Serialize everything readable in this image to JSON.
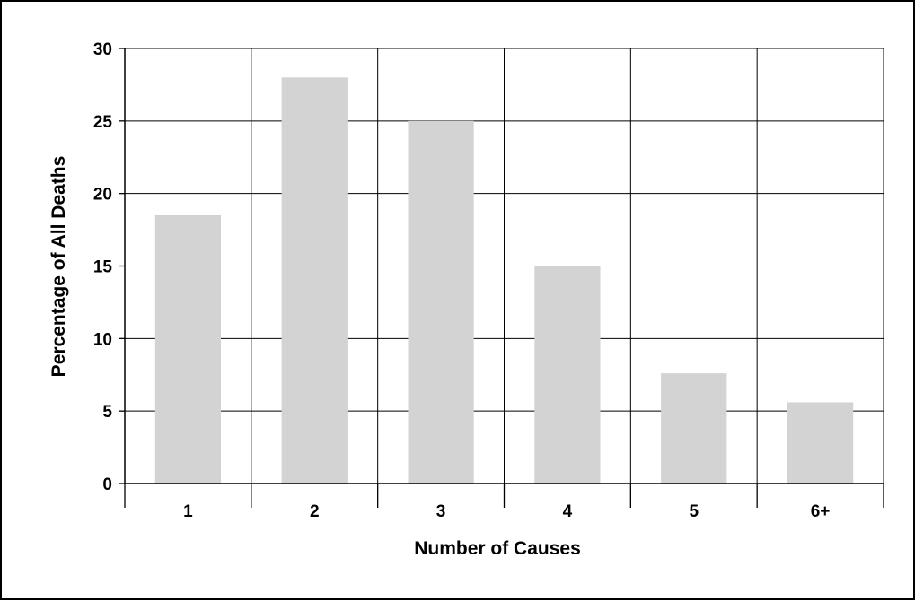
{
  "chart_data": {
    "type": "bar",
    "title": "",
    "xlabel": "Number of Causes",
    "ylabel": "Percentage of All Deaths",
    "categories": [
      "1",
      "2",
      "3",
      "4",
      "5",
      "6+"
    ],
    "values": [
      18.5,
      28.0,
      25.0,
      15.0,
      7.6,
      5.6
    ],
    "ylim": [
      0,
      30
    ],
    "yticks": [
      "0",
      "5",
      "10",
      "15",
      "20",
      "25",
      "30"
    ],
    "grid": true,
    "legend": "none",
    "bar_color": "#d3d3d3",
    "gridline_color": "#000000"
  }
}
